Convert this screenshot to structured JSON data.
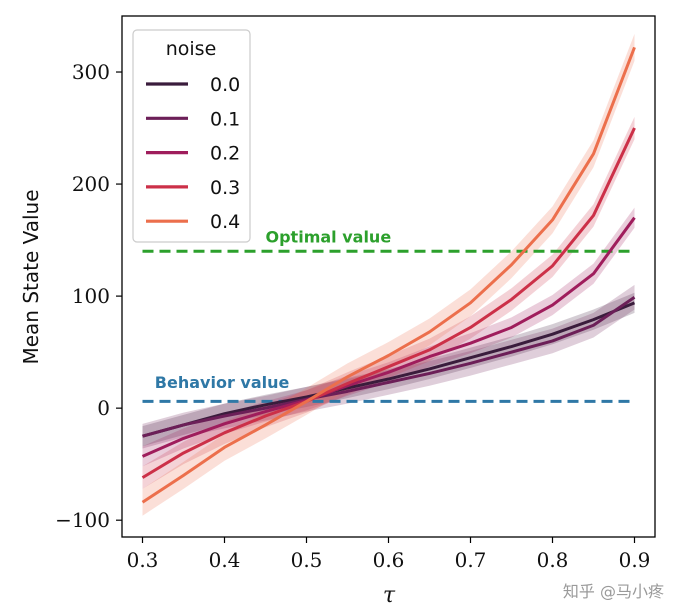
{
  "chart_data": {
    "type": "line",
    "title": "",
    "xlabel": "τ",
    "ylabel": "Mean State Value",
    "xlim": [
      0.275,
      0.925
    ],
    "ylim": [
      -115,
      350
    ],
    "xticks": [
      0.3,
      0.4,
      0.5,
      0.6,
      0.7,
      0.8,
      0.9
    ],
    "xtick_labels": [
      "0.3",
      "0.4",
      "0.5",
      "0.6",
      "0.7",
      "0.8",
      "0.9"
    ],
    "yticks": [
      -100,
      0,
      100,
      200,
      300
    ],
    "ytick_labels": [
      "−100",
      "0",
      "100",
      "200",
      "300"
    ],
    "grid": false,
    "legend": {
      "title": "noise",
      "placement": "top-left"
    },
    "x": [
      0.3,
      0.35,
      0.4,
      0.45,
      0.5,
      0.55,
      0.6,
      0.65,
      0.7,
      0.75,
      0.8,
      0.85,
      0.9
    ],
    "series": [
      {
        "name": "0.0",
        "color": "#3a1c3c",
        "values": [
          -25,
          -15,
          -5,
          3,
          10,
          18,
          26,
          35,
          45,
          55,
          66,
          79,
          94
        ],
        "band": 9
      },
      {
        "name": "0.1",
        "color": "#6c1f58",
        "values": [
          -25,
          -15,
          -7,
          0,
          8,
          15,
          23,
          31,
          40,
          50,
          60,
          74,
          99
        ],
        "band": 11
      },
      {
        "name": "0.2",
        "color": "#9f1d5c",
        "values": [
          -43,
          -27,
          -14,
          -3,
          7,
          20,
          32,
          46,
          58,
          72,
          92,
          120,
          170
        ],
        "band": 9
      },
      {
        "name": "0.3",
        "color": "#cc3048",
        "values": [
          -62,
          -40,
          -22,
          -7,
          6,
          22,
          37,
          52,
          72,
          97,
          127,
          172,
          250
        ],
        "band": 10
      },
      {
        "name": "0.4",
        "color": "#ec6f4c",
        "values": [
          -84,
          -60,
          -35,
          -15,
          6,
          28,
          47,
          68,
          94,
          128,
          168,
          227,
          322
        ],
        "band": 12
      }
    ],
    "reference_lines": [
      {
        "label": "Optimal value",
        "y": 140,
        "color": "#2ca02c",
        "x_range": [
          0.3,
          0.9
        ],
        "label_x": 0.45,
        "label_y": 148
      },
      {
        "label": "Behavior value",
        "y": 6,
        "color": "#2f78a6",
        "x_range": [
          0.3,
          0.9
        ],
        "label_x": 0.315,
        "label_y": 18
      }
    ]
  },
  "watermark": "知乎 @马小疼"
}
